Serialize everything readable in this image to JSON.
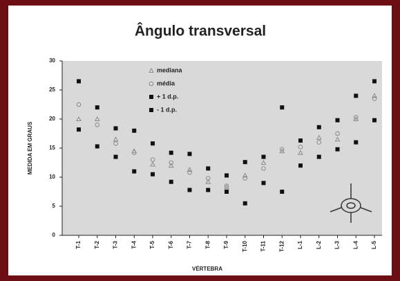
{
  "chart_data": {
    "type": "scatter",
    "title": "Ângulo transversal",
    "x_label": "VÉRTEBRA",
    "y_label": "MEDIDA EM GRAUS",
    "categories": [
      "T-1",
      "T-2",
      "T-3",
      "T-4",
      "T-5",
      "T-6",
      "T-7",
      "T-8",
      "T-9",
      "T-10",
      "T-11",
      "T-12",
      "L-1",
      "L-2",
      "L-3",
      "L-4",
      "L-5"
    ],
    "ylim": [
      0,
      30
    ],
    "yticks": [
      0,
      5,
      10,
      15,
      20,
      25,
      30
    ],
    "legend": "upper-left",
    "series": [
      {
        "name": "mediana",
        "marker": "triangle",
        "color": "#8a8a8a",
        "values": [
          20,
          20,
          16.5,
          14.5,
          12.2,
          12,
          11.3,
          9.2,
          8.3,
          10.3,
          12.5,
          14.5,
          14.2,
          16.8,
          16.5,
          20,
          24
        ]
      },
      {
        "name": "média",
        "marker": "circle",
        "color": "#8a8a8a",
        "values": [
          22.5,
          19,
          15.8,
          14.2,
          13,
          12.5,
          10.8,
          9.8,
          8.5,
          9.8,
          11.5,
          14.8,
          15.2,
          16,
          17.5,
          20.3,
          23.5
        ]
      },
      {
        "name": "+ 1 d.p.",
        "marker": "square",
        "color": "#111111",
        "values": [
          26.5,
          22,
          18.4,
          18,
          15.8,
          14.2,
          14,
          11.5,
          10.3,
          12.6,
          13.5,
          22,
          16.3,
          18.6,
          19.8,
          24,
          26.5
        ]
      },
      {
        "name": "- 1 d.p.",
        "marker": "square",
        "color": "#111111",
        "values": [
          18.2,
          15.3,
          13.5,
          11,
          10.5,
          9.2,
          7.8,
          7.8,
          7.5,
          5.5,
          9,
          7.5,
          12,
          13.5,
          14.8,
          16,
          19.8
        ]
      }
    ]
  }
}
